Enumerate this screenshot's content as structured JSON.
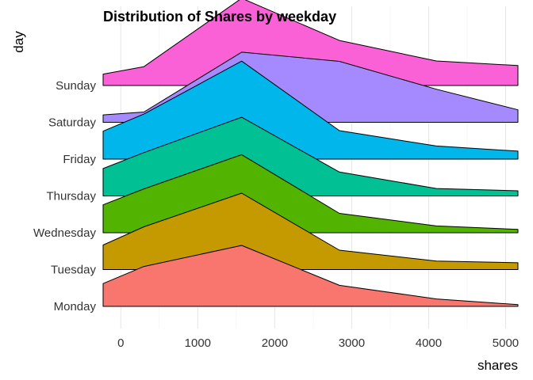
{
  "chart_data": {
    "type": "area",
    "subtype": "ridgeline",
    "title": "Distribution of Shares by weekday",
    "xlabel": "shares",
    "ylabel": "day",
    "xlim": [
      -230,
      5160
    ],
    "x_ticks": [
      0,
      1000,
      2000,
      3000,
      4000,
      5000
    ],
    "x": [
      -230,
      300,
      1570,
      2840,
      4100,
      5160
    ],
    "grid": true,
    "legend": "none",
    "series": [
      {
        "name": "Monday",
        "color": "#F8766D",
        "values": [
          0.4,
          0.7,
          1.07,
          0.37,
          0.13,
          0.03
        ]
      },
      {
        "name": "Tuesday",
        "color": "#C49A00",
        "values": [
          0.43,
          0.75,
          1.34,
          0.34,
          0.15,
          0.12
        ]
      },
      {
        "name": "Wednesday",
        "color": "#53B400",
        "values": [
          0.49,
          0.77,
          1.37,
          0.34,
          0.12,
          0.06
        ]
      },
      {
        "name": "Thursday",
        "color": "#00C094",
        "values": [
          0.48,
          0.76,
          1.38,
          0.42,
          0.13,
          0.09
        ]
      },
      {
        "name": "Friday",
        "color": "#00B6EB",
        "values": [
          0.49,
          0.79,
          1.72,
          0.5,
          0.23,
          0.14
        ]
      },
      {
        "name": "Saturday",
        "color": "#A58AFF",
        "values": [
          0.13,
          0.18,
          1.23,
          1.07,
          0.58,
          0.22
        ]
      },
      {
        "name": "Sunday",
        "color": "#FB61D7",
        "values": [
          0.2,
          0.33,
          1.53,
          0.79,
          0.43,
          0.35
        ]
      }
    ]
  }
}
